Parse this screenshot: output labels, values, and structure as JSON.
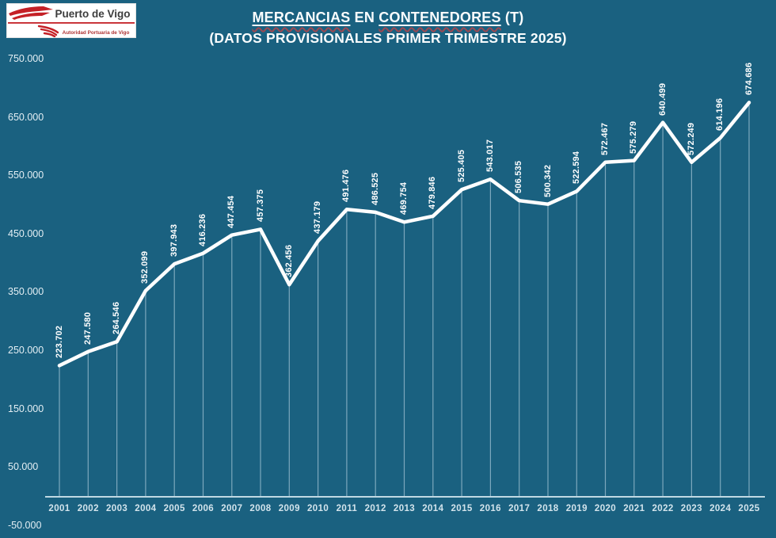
{
  "page": {
    "background": "#1A6180"
  },
  "logo": {
    "title": "Puerto de Vigo",
    "subtitle": "Autoridad Portuaria de Vigo",
    "accent_color": "#C42026"
  },
  "title": {
    "part1": "MERCANCIAS",
    "part2": " EN ",
    "part3": "CONTENEDORES",
    "part4": " (T)",
    "line2": "(DATOS PROVISIONALES PRIMER TRIMESTRE 2025)"
  },
  "chart_data": {
    "type": "line",
    "title": "MERCANCIAS EN CONTENEDORES (T)",
    "subtitle": "(DATOS PROVISIONALES PRIMER TRIMESTRE 2025)",
    "categories": [
      "2001",
      "2002",
      "2003",
      "2004",
      "2005",
      "2006",
      "2007",
      "2008",
      "2009",
      "2010",
      "2011",
      "2012",
      "2013",
      "2014",
      "2015",
      "2016",
      "2017",
      "2018",
      "2019",
      "2020",
      "2021",
      "2022",
      "2023",
      "2024",
      "2025"
    ],
    "values": [
      223702,
      247580,
      264546,
      352099,
      397943,
      416236,
      447454,
      457375,
      362456,
      437179,
      491476,
      486525,
      469754,
      479846,
      525405,
      543017,
      506535,
      500342,
      522594,
      572467,
      575279,
      640499,
      572249,
      614196,
      674686
    ],
    "point_labels": [
      "223.702",
      "247.580",
      "264.546",
      "352.099",
      "397.943",
      "416.236",
      "447.454",
      "457.375",
      "362.456",
      "437.179",
      "491.476",
      "486.525",
      "469.754",
      "479.846",
      "525.405",
      "543.017",
      "506.535",
      "500.342",
      "522.594",
      "572.467",
      "575.279",
      "640.499",
      "572.249",
      "614.196",
      "674.686"
    ],
    "y_ticks": {
      "labels": [
        "750.000",
        "650.000",
        "550.000",
        "450.000",
        "350.000",
        "250.000",
        "150.000",
        "50.000",
        "-50.000"
      ],
      "values": [
        750000,
        650000,
        550000,
        450000,
        350000,
        250000,
        150000,
        50000,
        -50000
      ]
    },
    "ylim": [
      -50000,
      750000
    ],
    "xlabel": "",
    "ylabel": "",
    "legend": "none",
    "grid": "vertical-drop-lines-only",
    "line_color": "#FFFFFF",
    "label_rotation": -90
  }
}
